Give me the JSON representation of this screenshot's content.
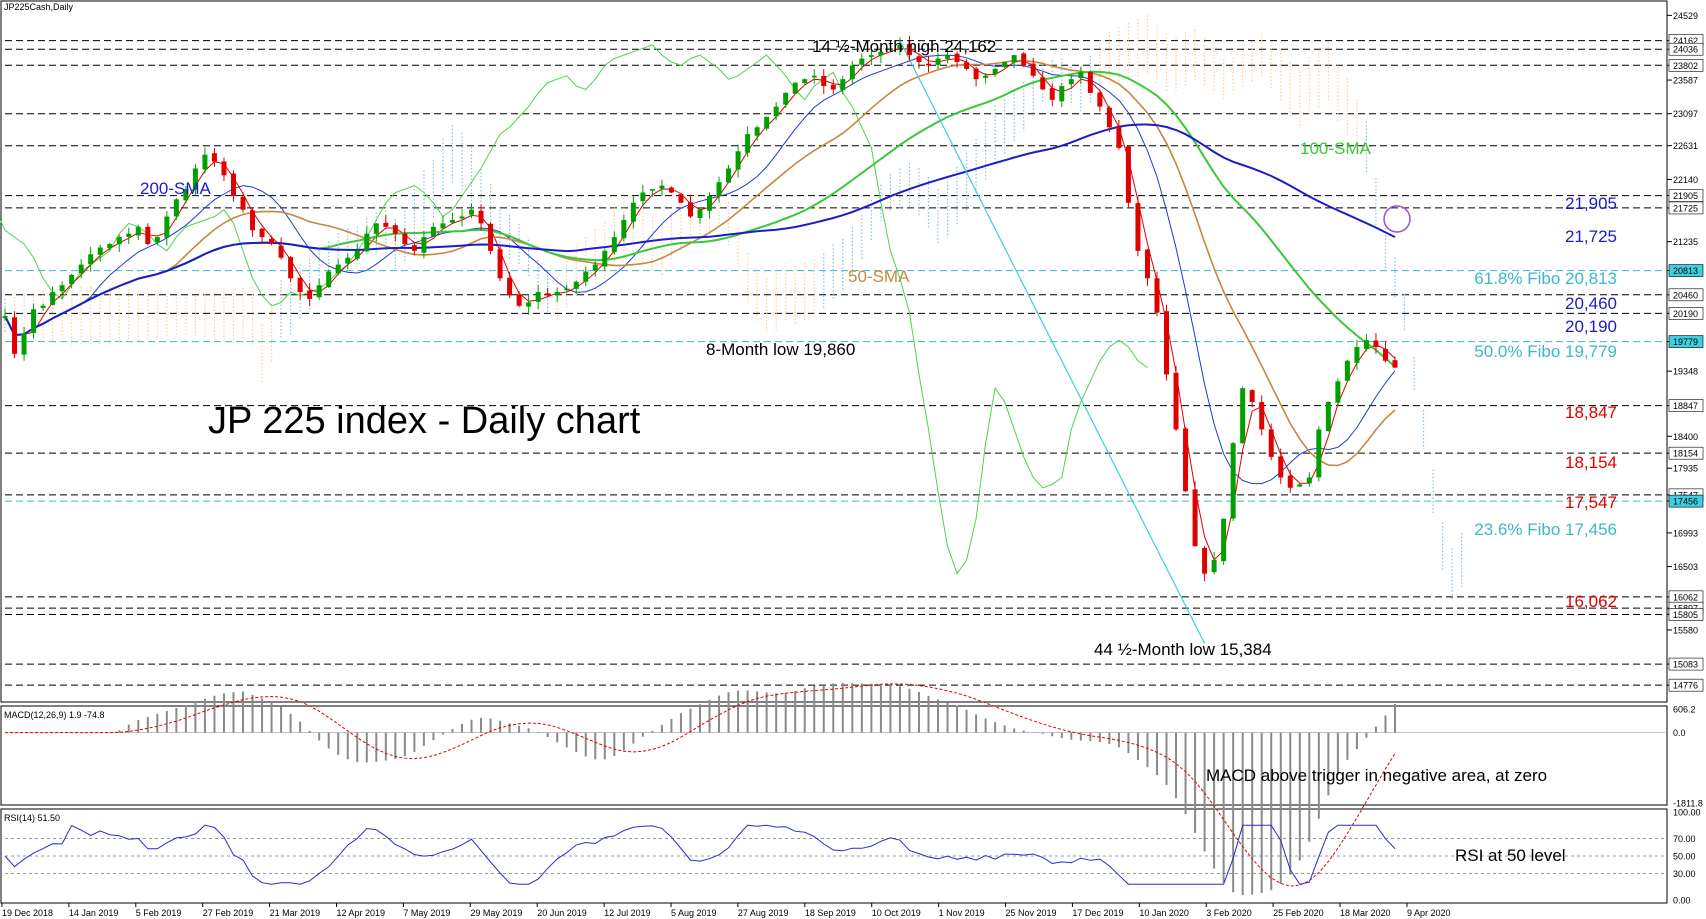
{
  "header": {
    "instrument": "JP225Cash,Daily"
  },
  "title": "JP 225 index - Daily chart",
  "colors": {
    "bull": "#00a000",
    "bear": "#e00000",
    "sma200": "#1c1cc8",
    "sma100": "#38c838",
    "sma50": "#c8873c",
    "tenkan": "#e00000",
    "kijun": "#1e3cd0",
    "chikou": "#4cd54c",
    "cloudA": "#ffcc99",
    "cloudB": "#88bfe8",
    "fibo": "#3cb8c8"
  },
  "chart_data": [
    {
      "type": "line",
      "name": "price",
      "x_labels": [
        "19 Dec 2018",
        "14 Jan 2019",
        "5 Feb 2019",
        "27 Feb 2019",
        "21 Mar 2019",
        "12 Apr 2019",
        "7 May 2019",
        "29 May 2019",
        "20 Jun 2019",
        "12 Jul 2019",
        "5 Aug 2019",
        "27 Aug 2019",
        "18 Sep 2019",
        "10 Oct 2019",
        "1 Nov 2019",
        "25 Nov 2019",
        "17 Dec 2019",
        "10 Jan 2020",
        "3 Feb 2020",
        "25 Feb 2020",
        "18 Mar 2020",
        "9 Apr 2020"
      ],
      "y_ticks": [
        "24529",
        "24162",
        "24036",
        "23802",
        "23587",
        "23097",
        "22631",
        "22140",
        "21905",
        "21725",
        "21235",
        "20813",
        "20460",
        "20190",
        "19779",
        "19348",
        "18847",
        "18400",
        "18154",
        "17935",
        "17547",
        "17456",
        "16993",
        "16503",
        "16062",
        "15897",
        "15805",
        "15580",
        "15083",
        "14776"
      ],
      "ylim": [
        14560,
        24680
      ],
      "closes": [
        20150,
        19600,
        19900,
        20250,
        20300,
        20500,
        20600,
        20750,
        20900,
        21050,
        21150,
        21200,
        21300,
        21350,
        21450,
        21200,
        21300,
        21600,
        21850,
        22000,
        22300,
        22500,
        22400,
        22200,
        21900,
        21700,
        21400,
        21300,
        21200,
        21000,
        20700,
        20500,
        20400,
        20600,
        20800,
        20900,
        21000,
        21100,
        21350,
        21500,
        21450,
        21350,
        21200,
        21100,
        21300,
        21450,
        21500,
        21550,
        21600,
        21700,
        21500,
        21100,
        20700,
        20450,
        20300,
        20350,
        20500,
        20450,
        20500,
        20550,
        20650,
        20800,
        20900,
        21100,
        21300,
        21550,
        21800,
        21950,
        22000,
        22050,
        21950,
        21800,
        21600,
        21700,
        21900,
        22100,
        22300,
        22550,
        22800,
        22900,
        23050,
        23200,
        23400,
        23550,
        23600,
        23650,
        23500,
        23450,
        23600,
        23800,
        23900,
        23950,
        24000,
        24050,
        24100,
        23950,
        23850,
        23800,
        23900,
        23950,
        23850,
        23750,
        23600,
        23650,
        23750,
        23850,
        23950,
        23800,
        23650,
        23450,
        23300,
        23500,
        23600,
        23700,
        23400,
        23200,
        22900,
        22600,
        21800,
        21100,
        20700,
        20200,
        19300,
        18500,
        17600,
        16800,
        16400,
        16600,
        17200,
        18300,
        19100,
        18900,
        18500,
        18100,
        17800,
        17650,
        17700,
        17800,
        18500,
        18900,
        19200,
        19500,
        19700,
        19800,
        19700,
        19500,
        19400
      ],
      "annotations": [
        {
          "text": "14 ½-Month high 24,162"
        },
        {
          "text": "8-Month low 19,860"
        },
        {
          "text": "44 ½-Month low 15,384"
        },
        {
          "text": "200-SMA"
        },
        {
          "text": "100-SMA"
        },
        {
          "text": "50-SMA"
        }
      ],
      "levels": [
        {
          "text": "21,905"
        },
        {
          "text": "21,725"
        },
        {
          "text": "61.8% Fibo 20,813"
        },
        {
          "text": "20,460"
        },
        {
          "text": "20,190"
        },
        {
          "text": "50.0% Fibo 19,779"
        },
        {
          "text": "18,847"
        },
        {
          "text": "18,154"
        },
        {
          "text": "17,547"
        },
        {
          "text": "23.6% Fibo 17,456"
        },
        {
          "text": "16,062"
        }
      ]
    },
    {
      "type": "bar",
      "name": "MACD",
      "header": "MACD(12,26,9) 1.9 -74.8",
      "y_ticks": [
        "606.2",
        "0.0",
        "-1811.8"
      ],
      "annotation": "MACD above trigger in negative area, at zero"
    },
    {
      "type": "line",
      "name": "RSI",
      "header": "RSI(14) 51.50",
      "y_ticks": [
        "100.00",
        "70.00",
        "50.00",
        "30.00",
        "0.00"
      ],
      "ylim": [
        0,
        100
      ],
      "annotation": "RSI at 50 level"
    }
  ]
}
